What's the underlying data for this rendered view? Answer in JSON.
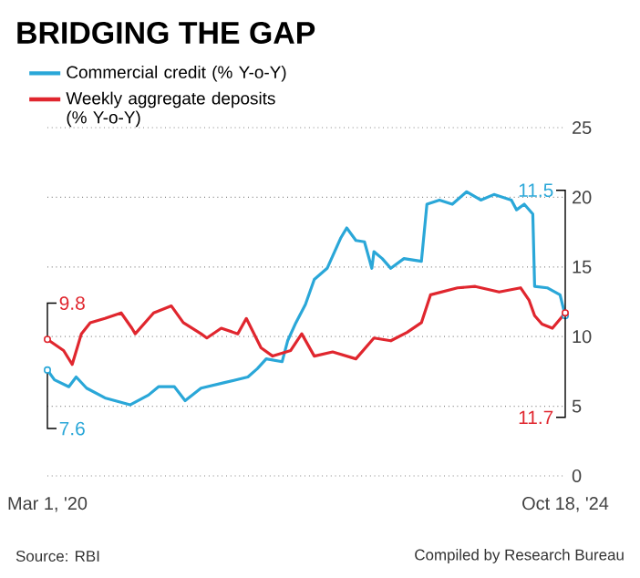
{
  "chart_data": {
    "type": "line",
    "title": "BRIDGING THE GAP",
    "xlim": [
      "2020-03-01",
      "2024-10-18"
    ],
    "xticks": [
      {
        "value": "2020-03-01",
        "label": "Mar 1, '20"
      },
      {
        "value": "2024-10-18",
        "label": "Oct 18, '24"
      }
    ],
    "ylim": [
      0,
      25
    ],
    "yticks": [
      0,
      5,
      10,
      15,
      20,
      25
    ],
    "grid": "y",
    "legend": "top left",
    "series": [
      {
        "name": "Commercial credit (% Y-o-Y)",
        "color": "#2aa7d8",
        "x": [
          "2020-03-01",
          "2020-03-24",
          "2020-05-10",
          "2020-06-03",
          "2020-07-07",
          "2020-09-05",
          "2020-11-26",
          "2021-01-25",
          "2021-02-27",
          "2021-04-20",
          "2021-05-25",
          "2021-07-16",
          "2021-10-01",
          "2021-12-16",
          "2022-01-16",
          "2022-02-14",
          "2022-04-07",
          "2022-04-25",
          "2022-05-22",
          "2022-06-22",
          "2022-07-21",
          "2022-09-01",
          "2022-10-16",
          "2022-11-04",
          "2022-12-04",
          "2023-01-01",
          "2023-01-25",
          "2023-02-01",
          "2023-02-28",
          "2023-03-28",
          "2023-05-10",
          "2023-07-06",
          "2023-07-24",
          "2023-09-03",
          "2023-10-15",
          "2023-12-01",
          "2024-01-16",
          "2024-02-28",
          "2024-04-25",
          "2024-05-12",
          "2024-06-06",
          "2024-07-04",
          "2024-07-10",
          "2024-08-20",
          "2024-10-01",
          "2024-10-18"
        ],
        "values": [
          7.6,
          6.9,
          6.4,
          7.1,
          6.3,
          5.6,
          5.1,
          5.8,
          6.4,
          6.4,
          5.4,
          6.3,
          6.7,
          7.1,
          7.7,
          8.4,
          8.2,
          9.7,
          11.0,
          12.3,
          14.1,
          14.9,
          17.1,
          17.8,
          16.9,
          16.8,
          14.9,
          16.1,
          15.6,
          14.9,
          15.6,
          15.4,
          19.5,
          19.8,
          19.5,
          20.4,
          19.8,
          20.2,
          19.8,
          19.1,
          19.5,
          18.8,
          13.6,
          13.5,
          13.0,
          11.5
        ]
      },
      {
        "name": "Weekly aggregate deposits (% Y-o-Y)",
        "color": "#e0262e",
        "x": [
          "2020-03-01",
          "2020-04-23",
          "2020-05-21",
          "2020-06-20",
          "2020-07-19",
          "2020-09-05",
          "2020-10-28",
          "2020-12-02",
          "2020-12-13",
          "2021-02-11",
          "2021-04-10",
          "2021-05-19",
          "2021-07-16",
          "2021-08-04",
          "2021-09-20",
          "2021-11-13",
          "2021-12-11",
          "2022-01-28",
          "2022-03-07",
          "2022-05-05",
          "2022-06-10",
          "2022-07-21",
          "2022-09-19",
          "2022-12-04",
          "2023-02-01",
          "2023-03-28",
          "2023-05-20",
          "2023-07-06",
          "2023-08-05",
          "2023-11-01",
          "2023-12-29",
          "2024-03-16",
          "2024-05-25",
          "2024-06-22",
          "2024-07-10",
          "2024-08-03",
          "2024-09-06",
          "2024-10-18"
        ],
        "values": [
          9.8,
          9.0,
          8.0,
          10.2,
          11.0,
          11.3,
          11.7,
          10.6,
          10.2,
          11.7,
          12.2,
          11.0,
          10.2,
          9.9,
          10.6,
          10.2,
          11.3,
          9.2,
          8.6,
          9.0,
          10.2,
          8.6,
          8.9,
          8.4,
          9.9,
          9.7,
          10.3,
          11.0,
          13.0,
          13.5,
          13.6,
          13.2,
          13.5,
          12.6,
          11.5,
          10.9,
          10.6,
          11.7
        ]
      }
    ],
    "annotations": [
      {
        "text": "9.8",
        "x": "2020-03-01",
        "y": 9.8
      },
      {
        "text": "7.6",
        "x": "2020-03-01",
        "y": 7.6
      },
      "11.5",
      "11.7",
      "Source: RBI",
      "Compiled by Research Bureau"
    ]
  }
}
